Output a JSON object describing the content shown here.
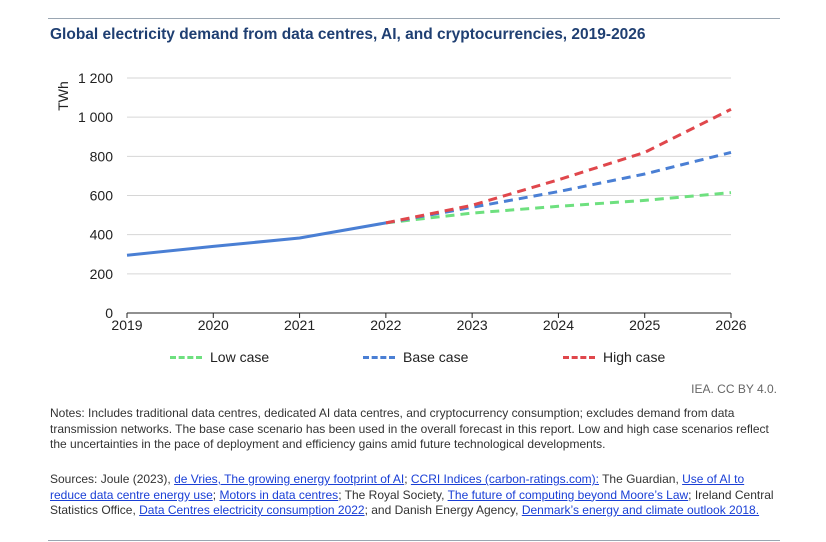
{
  "title": "Global electricity demand from data centres, AI, and cryptocurrencies, 2019-2026",
  "credit": "IEA. CC BY 4.0.",
  "notes": "Notes: Includes traditional data centres, dedicated AI data centres, and cryptocurrency consumption; excludes demand from data transmission networks. The base case scenario has been used in the overall forecast in this report. Low and high case scenarios reflect the uncertainties in the pace of deployment and efficiency gains amid future technological developments.",
  "sources": {
    "prefix": "Sources: Joule (2023), ",
    "link1": "de Vries, The growing energy footprint of AI",
    "sep1": "; ",
    "link2": "CCRI Indices (carbon-ratings.com):",
    "text2": " The Guardian, ",
    "link3": "Use of AI to reduce data centre energy use",
    "sep3": "; ",
    "link4": "Motors in data centres",
    "text4": "; The Royal Society, ",
    "link5": "The future of computing beyond Moore’s Law",
    "text5": "; Ireland Central Statistics Office, ",
    "link6": "Data Centres electricity consumption 2022",
    "text6": "; and Danish Energy Agency, ",
    "link7": "Denmark’s energy and climate outlook 2018."
  },
  "chart_data": {
    "type": "line",
    "title": "Global electricity demand from data centres, AI, and cryptocurrencies, 2019-2026",
    "ylabel": "TWh",
    "xlabel": "",
    "ylim": [
      0,
      1200
    ],
    "yticks": [
      0,
      200,
      400,
      600,
      800,
      1000,
      1200
    ],
    "ytick_labels": [
      "0",
      "200",
      "400",
      "600",
      "800",
      "1 000",
      "1 200"
    ],
    "x": [
      "2019",
      "2020",
      "2021",
      "2022",
      "2023",
      "2024",
      "2025",
      "2026"
    ],
    "grid": "horizontal",
    "legend_position": "bottom",
    "historical": {
      "x": [
        "2019",
        "2020",
        "2021",
        "2022"
      ],
      "values": [
        295,
        340,
        383,
        460
      ],
      "color": "#4a7fd4"
    },
    "series": [
      {
        "name": "Low case",
        "x": [
          "2022",
          "2023",
          "2024",
          "2025",
          "2026"
        ],
        "values": [
          460,
          510,
          545,
          575,
          615
        ],
        "color": "#6ee07f"
      },
      {
        "name": "Base case",
        "x": [
          "2022",
          "2023",
          "2024",
          "2025",
          "2026"
        ],
        "values": [
          460,
          540,
          620,
          710,
          820
        ],
        "color": "#4a7fd4"
      },
      {
        "name": "High case",
        "x": [
          "2022",
          "2023",
          "2024",
          "2025",
          "2026"
        ],
        "values": [
          460,
          550,
          680,
          820,
          1040
        ],
        "color": "#e0474c"
      }
    ]
  }
}
